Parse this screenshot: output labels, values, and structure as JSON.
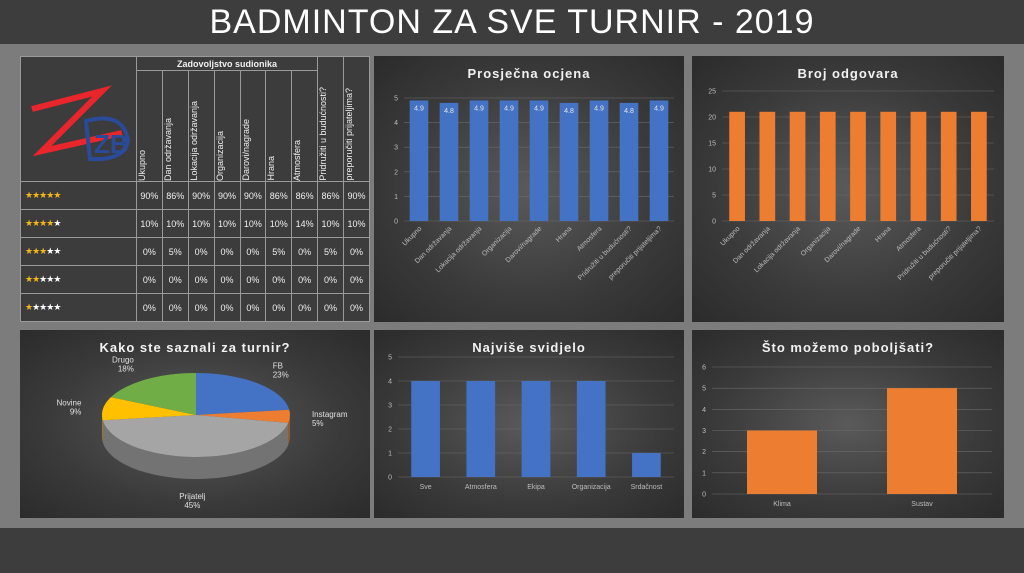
{
  "title": "BADMINTON ZA SVE TURNIR - 2019",
  "colors": {
    "blue": "#4472c4",
    "orange": "#ed7d31",
    "yellow": "#ffc000",
    "gray": "#a5a5a5",
    "green": "#70ad47",
    "logo_red": "#e8262b",
    "logo_blue": "#2a4a9a"
  },
  "logo": {
    "text": "ZB"
  },
  "table": {
    "group_header": "Zadovoljstvo sudionika",
    "columns": [
      "Ukupno",
      "Dan održavanja",
      "Lokacija održavanja",
      "Organizacija",
      "Darovi/nagrade",
      "Hrana",
      "Atmosfera",
      "Pridružiti u budućnosti?",
      "preporučiti prijateljima?"
    ],
    "rows": [
      {
        "stars": 5,
        "values": [
          "90%",
          "86%",
          "90%",
          "90%",
          "90%",
          "86%",
          "86%",
          "86%",
          "90%"
        ]
      },
      {
        "stars": 4,
        "values": [
          "10%",
          "10%",
          "10%",
          "10%",
          "10%",
          "10%",
          "14%",
          "10%",
          "10%"
        ]
      },
      {
        "stars": 3,
        "values": [
          "0%",
          "5%",
          "0%",
          "0%",
          "0%",
          "5%",
          "0%",
          "5%",
          "0%"
        ]
      },
      {
        "stars": 2,
        "values": [
          "0%",
          "0%",
          "0%",
          "0%",
          "0%",
          "0%",
          "0%",
          "0%",
          "0%"
        ]
      },
      {
        "stars": 1,
        "values": [
          "0%",
          "0%",
          "0%",
          "0%",
          "0%",
          "0%",
          "0%",
          "0%",
          "0%"
        ]
      }
    ]
  },
  "chart_data": [
    {
      "type": "bar",
      "title": "Prosječna ocjena",
      "categories": [
        "Ukupno",
        "Dan održavanja",
        "Lokacija održavanja",
        "Organizacija",
        "Darovi/nagrade",
        "Hrana",
        "Atmosfera",
        "Pridružiti u budućnosti?",
        "preporučiti prijateljima?"
      ],
      "values": [
        4.9,
        4.8,
        4.9,
        4.9,
        4.9,
        4.8,
        4.9,
        4.8,
        4.9
      ],
      "data_labels": [
        "4.9",
        "4.8",
        "4.9",
        "4.9",
        "4.9",
        "4.8",
        "4.9",
        "4.8",
        "4.9"
      ],
      "yticks": [
        "0",
        "1",
        "2",
        "3",
        "4",
        "5"
      ],
      "ylim": [
        0,
        5
      ],
      "color": "#4472c4",
      "xlabel": "",
      "ylabel": ""
    },
    {
      "type": "bar",
      "title": "Broj odgovara",
      "categories": [
        "Ukupno",
        "Dan održavanja",
        "Lokacija održavanja",
        "Organizacija",
        "Darovi/nagrade",
        "Hrana",
        "Atmosfera",
        "Pridružiti u budućnosti?",
        "preporučiti prijateljima?"
      ],
      "values": [
        21,
        21,
        21,
        21,
        21,
        21,
        21,
        21,
        21
      ],
      "yticks": [
        "0",
        "5",
        "10",
        "15",
        "20",
        "25"
      ],
      "ylim": [
        0,
        25
      ],
      "color": "#ed7d31",
      "xlabel": "",
      "ylabel": ""
    },
    {
      "type": "pie",
      "title": "Kako ste saznali za turnir?",
      "slices": [
        {
          "label": "FB",
          "percent": "23%",
          "value": 23,
          "color": "#4472c4"
        },
        {
          "label": "Instagram",
          "percent": "5%",
          "value": 5,
          "color": "#ed7d31"
        },
        {
          "label": "Prijatelj",
          "percent": "45%",
          "value": 45,
          "color": "#a5a5a5"
        },
        {
          "label": "Novine",
          "percent": "9%",
          "value": 9,
          "color": "#ffc000"
        },
        {
          "label": "Drugo",
          "percent": "18%",
          "value": 18,
          "color": "#70ad47"
        }
      ]
    },
    {
      "type": "bar",
      "title": "Najviše svidjelo",
      "categories": [
        "Sve",
        "Atmosfera",
        "Ekipa",
        "Organizacija",
        "Srdačnost"
      ],
      "values": [
        4,
        4,
        4,
        4,
        1
      ],
      "yticks": [
        "0",
        "1",
        "2",
        "3",
        "4",
        "5"
      ],
      "ylim": [
        0,
        5
      ],
      "color": "#4472c4",
      "xlabel": "",
      "ylabel": ""
    },
    {
      "type": "bar",
      "title": "Što možemo poboljšati?",
      "categories": [
        "Klima",
        "Sustav"
      ],
      "values": [
        3,
        5
      ],
      "yticks": [
        "0",
        "1",
        "2",
        "3",
        "4",
        "5",
        "6"
      ],
      "ylim": [
        0,
        6
      ],
      "color": "#ed7d31",
      "xlabel": "",
      "ylabel": ""
    }
  ]
}
